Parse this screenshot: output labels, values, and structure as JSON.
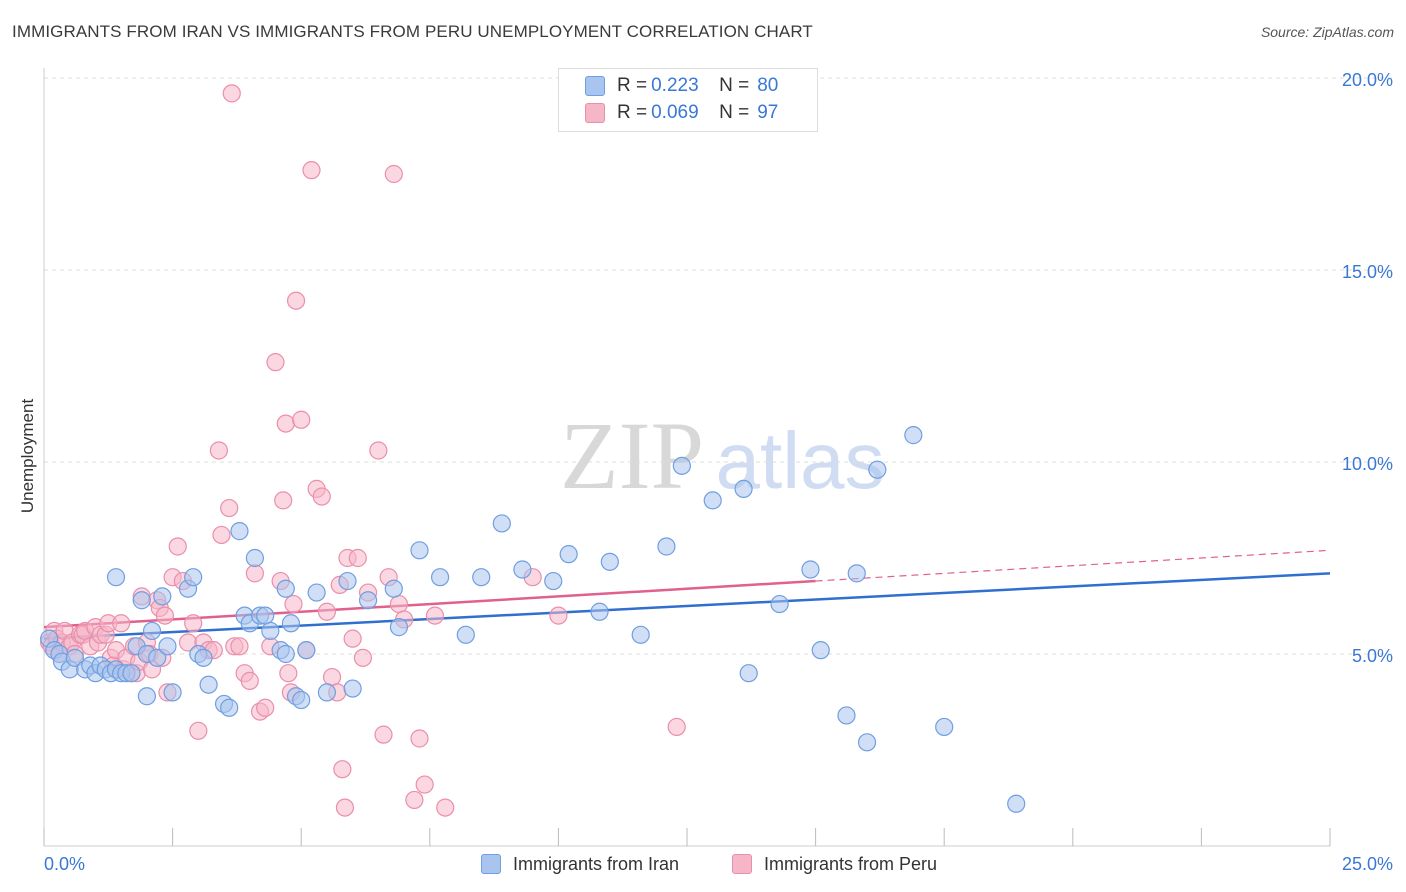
{
  "header": {
    "title": "IMMIGRANTS FROM IRAN VS IMMIGRANTS FROM PERU UNEMPLOYMENT CORRELATION CHART",
    "source": "Source: ZipAtlas.com"
  },
  "watermark": {
    "zip": "ZIP",
    "atlas": "atlas"
  },
  "legend_top": {
    "rows": [
      {
        "r_label": "R =",
        "r_value": "0.223",
        "n_label": "N =",
        "n_value": "80",
        "color": "#a9c4ef"
      },
      {
        "r_label": "R =",
        "r_value": "0.069",
        "n_label": "N =",
        "n_value": "97",
        "color": "#f5b6c8"
      }
    ]
  },
  "legend_bottom": [
    {
      "label": "Immigrants from Iran",
      "color": "#a9c4ef"
    },
    {
      "label": "Immigrants from Peru",
      "color": "#f5b6c8"
    }
  ],
  "colors": {
    "iran_fill": "#a9c4ef",
    "iran_stroke": "#6f9fe0",
    "iran_line": "#2f6fcf",
    "peru_fill": "#f5b6c8",
    "peru_stroke": "#ea8fab",
    "peru_line": "#e0608e",
    "tick_label": "#3a78d4",
    "grid": "#dddddd"
  },
  "chart_data": {
    "type": "scatter",
    "title": "IMMIGRANTS FROM IRAN VS IMMIGRANTS FROM PERU UNEMPLOYMENT CORRELATION CHART",
    "xlabel": "",
    "ylabel": "Unemployment",
    "xlim": [
      0,
      25
    ],
    "ylim": [
      0,
      20
    ],
    "x_tick_labels": [
      "0.0%",
      "25.0%"
    ],
    "y_ticks": [
      5,
      10,
      15,
      20
    ],
    "y_tick_labels": [
      "5.0%",
      "10.0%",
      "15.0%",
      "20.0%"
    ],
    "grid": "horizontal dashed",
    "legend_position": "top-center and bottom",
    "series": [
      {
        "name": "Immigrants from Iran",
        "r": 0.223,
        "n": 80,
        "trend": {
          "x": [
            0,
            25
          ],
          "y": [
            5.4,
            7.1
          ]
        },
        "points": [
          [
            0.1,
            5.4
          ],
          [
            0.2,
            5.1
          ],
          [
            0.3,
            5.0
          ],
          [
            0.35,
            4.8
          ],
          [
            0.5,
            4.6
          ],
          [
            0.6,
            4.9
          ],
          [
            0.8,
            4.6
          ],
          [
            0.9,
            4.7
          ],
          [
            1.0,
            4.5
          ],
          [
            1.1,
            4.7
          ],
          [
            1.2,
            4.6
          ],
          [
            1.3,
            4.5
          ],
          [
            1.4,
            4.6
          ],
          [
            1.5,
            4.5
          ],
          [
            1.6,
            4.5
          ],
          [
            1.4,
            7.0
          ],
          [
            1.7,
            4.5
          ],
          [
            1.8,
            5.2
          ],
          [
            1.9,
            6.4
          ],
          [
            2.1,
            5.6
          ],
          [
            2.0,
            5.0
          ],
          [
            2.2,
            4.9
          ],
          [
            2.3,
            6.5
          ],
          [
            2.4,
            5.2
          ],
          [
            2.5,
            4.0
          ],
          [
            2.0,
            3.9
          ],
          [
            2.8,
            6.7
          ],
          [
            2.9,
            7.0
          ],
          [
            3.0,
            5.0
          ],
          [
            3.1,
            4.9
          ],
          [
            3.2,
            4.2
          ],
          [
            3.5,
            3.7
          ],
          [
            3.6,
            3.6
          ],
          [
            3.8,
            8.2
          ],
          [
            3.9,
            6.0
          ],
          [
            4.0,
            5.8
          ],
          [
            4.1,
            7.5
          ],
          [
            4.2,
            6.0
          ],
          [
            4.3,
            6.0
          ],
          [
            4.4,
            5.6
          ],
          [
            4.6,
            5.1
          ],
          [
            4.7,
            5.0
          ],
          [
            4.8,
            5.8
          ],
          [
            4.9,
            3.9
          ],
          [
            5.0,
            3.8
          ],
          [
            5.1,
            5.1
          ],
          [
            5.3,
            6.6
          ],
          [
            4.7,
            6.7
          ],
          [
            5.5,
            4.0
          ],
          [
            5.9,
            6.9
          ],
          [
            6.0,
            4.1
          ],
          [
            6.3,
            6.4
          ],
          [
            6.8,
            6.7
          ],
          [
            6.9,
            5.7
          ],
          [
            7.3,
            7.7
          ],
          [
            7.7,
            7.0
          ],
          [
            8.2,
            5.5
          ],
          [
            8.5,
            7.0
          ],
          [
            8.9,
            8.4
          ],
          [
            9.3,
            7.2
          ],
          [
            9.9,
            6.9
          ],
          [
            10.2,
            7.6
          ],
          [
            10.8,
            6.1
          ],
          [
            11.0,
            7.4
          ],
          [
            11.6,
            5.5
          ],
          [
            12.1,
            7.8
          ],
          [
            12.4,
            9.9
          ],
          [
            13.0,
            9.0
          ],
          [
            13.6,
            9.3
          ],
          [
            13.7,
            4.5
          ],
          [
            14.3,
            6.3
          ],
          [
            14.9,
            7.2
          ],
          [
            15.1,
            5.1
          ],
          [
            15.8,
            7.1
          ],
          [
            15.6,
            3.4
          ],
          [
            16.2,
            9.8
          ],
          [
            16.0,
            2.7
          ],
          [
            16.9,
            10.7
          ],
          [
            17.5,
            3.1
          ],
          [
            18.9,
            1.1
          ]
        ]
      },
      {
        "name": "Immigrants from Peru",
        "r": 0.069,
        "n": 97,
        "trend": {
          "x": [
            0,
            15
          ],
          "y": [
            5.7,
            6.9
          ]
        },
        "trend_dashed": {
          "x": [
            15,
            25
          ],
          "y": [
            6.9,
            7.7
          ]
        },
        "points": [
          [
            0.1,
            5.3
          ],
          [
            0.15,
            5.2
          ],
          [
            0.2,
            5.6
          ],
          [
            0.25,
            5.4
          ],
          [
            0.3,
            5.0
          ],
          [
            0.35,
            5.3
          ],
          [
            0.4,
            5.6
          ],
          [
            0.5,
            5.2
          ],
          [
            0.55,
            5.3
          ],
          [
            0.6,
            5.0
          ],
          [
            0.7,
            5.5
          ],
          [
            0.75,
            5.5
          ],
          [
            0.8,
            5.6
          ],
          [
            0.9,
            5.2
          ],
          [
            1.0,
            5.7
          ],
          [
            1.05,
            5.3
          ],
          [
            1.1,
            5.5
          ],
          [
            1.2,
            5.5
          ],
          [
            1.25,
            5.8
          ],
          [
            1.3,
            4.9
          ],
          [
            1.35,
            4.7
          ],
          [
            1.4,
            5.1
          ],
          [
            1.5,
            5.8
          ],
          [
            1.55,
            4.6
          ],
          [
            1.6,
            4.9
          ],
          [
            1.7,
            4.5
          ],
          [
            1.75,
            5.2
          ],
          [
            1.8,
            4.5
          ],
          [
            1.85,
            4.8
          ],
          [
            1.9,
            6.5
          ],
          [
            2.0,
            5.3
          ],
          [
            2.05,
            5.0
          ],
          [
            2.1,
            4.6
          ],
          [
            2.2,
            6.4
          ],
          [
            2.25,
            6.2
          ],
          [
            2.3,
            4.9
          ],
          [
            2.35,
            6.0
          ],
          [
            2.4,
            4.0
          ],
          [
            2.5,
            7.0
          ],
          [
            2.6,
            7.8
          ],
          [
            2.7,
            6.9
          ],
          [
            2.8,
            5.3
          ],
          [
            2.9,
            5.8
          ],
          [
            3.0,
            3.0
          ],
          [
            3.1,
            5.3
          ],
          [
            3.2,
            5.1
          ],
          [
            3.3,
            5.1
          ],
          [
            3.4,
            10.3
          ],
          [
            3.45,
            8.1
          ],
          [
            3.6,
            8.8
          ],
          [
            3.7,
            5.2
          ],
          [
            3.8,
            5.2
          ],
          [
            3.9,
            4.5
          ],
          [
            4.0,
            4.3
          ],
          [
            4.1,
            7.1
          ],
          [
            4.2,
            3.5
          ],
          [
            4.3,
            3.6
          ],
          [
            4.4,
            5.2
          ],
          [
            4.5,
            12.6
          ],
          [
            4.6,
            6.9
          ],
          [
            4.65,
            9.0
          ],
          [
            4.7,
            11.0
          ],
          [
            4.75,
            4.5
          ],
          [
            4.8,
            4.0
          ],
          [
            4.85,
            6.3
          ],
          [
            4.9,
            14.2
          ],
          [
            5.0,
            11.1
          ],
          [
            5.1,
            5.1
          ],
          [
            5.2,
            17.6
          ],
          [
            5.3,
            9.3
          ],
          [
            5.4,
            9.1
          ],
          [
            5.5,
            6.1
          ],
          [
            5.6,
            4.4
          ],
          [
            5.7,
            4.0
          ],
          [
            5.75,
            6.8
          ],
          [
            5.8,
            2.0
          ],
          [
            5.85,
            1.0
          ],
          [
            5.9,
            7.5
          ],
          [
            6.0,
            5.4
          ],
          [
            6.1,
            7.5
          ],
          [
            6.2,
            4.9
          ],
          [
            6.3,
            6.6
          ],
          [
            6.5,
            10.3
          ],
          [
            6.6,
            2.9
          ],
          [
            6.7,
            7.0
          ],
          [
            6.8,
            17.5
          ],
          [
            6.9,
            6.3
          ],
          [
            7.0,
            5.9
          ],
          [
            7.2,
            1.2
          ],
          [
            7.3,
            2.8
          ],
          [
            7.4,
            1.6
          ],
          [
            7.6,
            6.0
          ],
          [
            7.8,
            1.0
          ],
          [
            9.5,
            7.0
          ],
          [
            10.0,
            6.0
          ],
          [
            12.3,
            3.1
          ],
          [
            3.65,
            19.6
          ]
        ]
      }
    ]
  }
}
